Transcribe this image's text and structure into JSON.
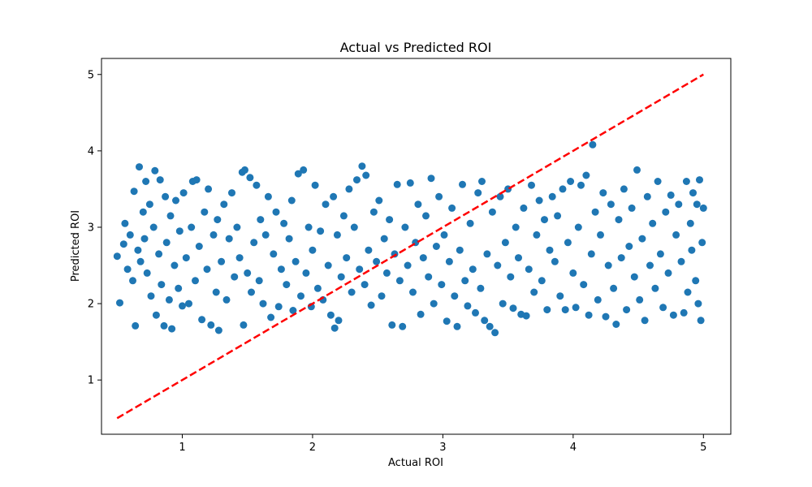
{
  "chart_data": {
    "type": "scatter",
    "title": "Actual vs Predicted ROI",
    "xlabel": "Actual ROI",
    "ylabel": "Predicted ROI",
    "xlim": [
      0.38,
      5.21
    ],
    "ylim": [
      0.29,
      5.21
    ],
    "xticks": [
      "1",
      "2",
      "3",
      "4",
      "5"
    ],
    "yticks": [
      "1",
      "2",
      "3",
      "4",
      "5"
    ],
    "grid": false,
    "legend": "none",
    "point_color": "#1f77b4",
    "reference_line_color": "#ff0000",
    "reference_line": {
      "style": "dashed",
      "x": [
        0.5,
        5.0
      ],
      "y": [
        0.5,
        5.0
      ]
    },
    "series": [
      {
        "values_description": "Predicted ROI per sample",
        "points": [
          [
            0.5,
            2.62
          ],
          [
            0.52,
            2.01
          ],
          [
            0.55,
            2.78
          ],
          [
            0.56,
            3.05
          ],
          [
            0.58,
            2.45
          ],
          [
            0.6,
            2.9
          ],
          [
            0.62,
            2.3
          ],
          [
            0.63,
            3.47
          ],
          [
            0.64,
            1.71
          ],
          [
            0.66,
            2.7
          ],
          [
            0.67,
            3.79
          ],
          [
            0.68,
            2.55
          ],
          [
            0.7,
            3.2
          ],
          [
            0.71,
            2.85
          ],
          [
            0.72,
            3.6
          ],
          [
            0.73,
            2.4
          ],
          [
            0.75,
            3.3
          ],
          [
            0.76,
            2.1
          ],
          [
            0.78,
            3.0
          ],
          [
            0.79,
            3.74
          ],
          [
            0.8,
            1.85
          ],
          [
            0.82,
            2.65
          ],
          [
            0.83,
            3.62
          ],
          [
            0.84,
            2.25
          ],
          [
            0.86,
            1.71
          ],
          [
            0.87,
            3.4
          ],
          [
            0.88,
            2.8
          ],
          [
            0.9,
            2.05
          ],
          [
            0.91,
            3.15
          ],
          [
            0.92,
            1.67
          ],
          [
            0.94,
            2.5
          ],
          [
            0.95,
            3.35
          ],
          [
            0.97,
            2.2
          ],
          [
            0.98,
            2.95
          ],
          [
            1.0,
            1.97
          ],
          [
            1.01,
            3.45
          ],
          [
            1.03,
            2.6
          ],
          [
            1.05,
            2.0
          ],
          [
            1.07,
            3.0
          ],
          [
            1.08,
            3.6
          ],
          [
            1.1,
            2.3
          ],
          [
            1.11,
            3.62
          ],
          [
            1.13,
            2.75
          ],
          [
            1.15,
            1.79
          ],
          [
            1.17,
            3.2
          ],
          [
            1.19,
            2.45
          ],
          [
            1.2,
            3.5
          ],
          [
            1.22,
            1.72
          ],
          [
            1.24,
            2.9
          ],
          [
            1.26,
            2.15
          ],
          [
            1.27,
            3.1
          ],
          [
            1.28,
            1.65
          ],
          [
            1.3,
            2.55
          ],
          [
            1.32,
            3.3
          ],
          [
            1.34,
            2.05
          ],
          [
            1.36,
            2.85
          ],
          [
            1.38,
            3.45
          ],
          [
            1.4,
            2.35
          ],
          [
            1.42,
            3.0
          ],
          [
            1.44,
            2.6
          ],
          [
            1.46,
            3.72
          ],
          [
            1.47,
            1.72
          ],
          [
            1.48,
            3.75
          ],
          [
            1.5,
            2.4
          ],
          [
            1.52,
            3.65
          ],
          [
            1.53,
            2.15
          ],
          [
            1.55,
            2.8
          ],
          [
            1.57,
            3.55
          ],
          [
            1.59,
            2.3
          ],
          [
            1.6,
            3.1
          ],
          [
            1.62,
            2.0
          ],
          [
            1.64,
            2.9
          ],
          [
            1.66,
            3.4
          ],
          [
            1.68,
            1.82
          ],
          [
            1.7,
            2.65
          ],
          [
            1.72,
            3.2
          ],
          [
            1.74,
            1.96
          ],
          [
            1.76,
            2.45
          ],
          [
            1.78,
            3.05
          ],
          [
            1.8,
            2.25
          ],
          [
            1.82,
            2.85
          ],
          [
            1.84,
            3.35
          ],
          [
            1.85,
            1.91
          ],
          [
            1.87,
            2.55
          ],
          [
            1.89,
            3.7
          ],
          [
            1.91,
            2.1
          ],
          [
            1.93,
            3.75
          ],
          [
            1.95,
            2.4
          ],
          [
            1.97,
            3.0
          ],
          [
            1.99,
            1.96
          ],
          [
            2.0,
            2.7
          ],
          [
            2.02,
            3.55
          ],
          [
            2.04,
            2.2
          ],
          [
            2.06,
            2.95
          ],
          [
            2.08,
            2.05
          ],
          [
            2.1,
            3.3
          ],
          [
            2.12,
            2.5
          ],
          [
            2.14,
            1.85
          ],
          [
            2.16,
            3.4
          ],
          [
            2.17,
            1.68
          ],
          [
            2.19,
            2.9
          ],
          [
            2.2,
            1.78
          ],
          [
            2.22,
            2.35
          ],
          [
            2.24,
            3.15
          ],
          [
            2.26,
            2.6
          ],
          [
            2.28,
            3.5
          ],
          [
            2.3,
            2.15
          ],
          [
            2.32,
            3.0
          ],
          [
            2.34,
            3.62
          ],
          [
            2.36,
            2.45
          ],
          [
            2.38,
            3.8
          ],
          [
            2.4,
            2.25
          ],
          [
            2.41,
            3.68
          ],
          [
            2.43,
            2.7
          ],
          [
            2.45,
            1.98
          ],
          [
            2.47,
            3.2
          ],
          [
            2.49,
            2.55
          ],
          [
            2.51,
            3.35
          ],
          [
            2.53,
            2.1
          ],
          [
            2.55,
            2.85
          ],
          [
            2.57,
            2.4
          ],
          [
            2.59,
            3.1
          ],
          [
            2.61,
            1.72
          ],
          [
            2.63,
            2.65
          ],
          [
            2.65,
            3.56
          ],
          [
            2.67,
            2.3
          ],
          [
            2.69,
            1.7
          ],
          [
            2.71,
            3.0
          ],
          [
            2.73,
            2.5
          ],
          [
            2.75,
            3.58
          ],
          [
            2.77,
            2.15
          ],
          [
            2.79,
            2.8
          ],
          [
            2.81,
            3.3
          ],
          [
            2.83,
            1.86
          ],
          [
            2.85,
            2.6
          ],
          [
            2.87,
            3.15
          ],
          [
            2.89,
            2.35
          ],
          [
            2.91,
            3.64
          ],
          [
            2.93,
            2.0
          ],
          [
            2.95,
            2.75
          ],
          [
            2.97,
            3.4
          ],
          [
            2.99,
            2.25
          ],
          [
            3.01,
            2.9
          ],
          [
            3.03,
            1.77
          ],
          [
            3.05,
            2.55
          ],
          [
            3.07,
            3.25
          ],
          [
            3.09,
            2.1
          ],
          [
            3.11,
            1.7
          ],
          [
            3.13,
            2.7
          ],
          [
            3.15,
            3.56
          ],
          [
            3.17,
            2.3
          ],
          [
            3.19,
            1.97
          ],
          [
            3.21,
            3.05
          ],
          [
            3.23,
            2.45
          ],
          [
            3.25,
            1.88
          ],
          [
            3.27,
            3.45
          ],
          [
            3.29,
            2.2
          ],
          [
            3.3,
            3.6
          ],
          [
            3.32,
            1.78
          ],
          [
            3.34,
            2.65
          ],
          [
            3.36,
            1.7
          ],
          [
            3.38,
            3.2
          ],
          [
            3.4,
            1.62
          ],
          [
            3.42,
            2.5
          ],
          [
            3.44,
            3.4
          ],
          [
            3.46,
            2.0
          ],
          [
            3.48,
            2.8
          ],
          [
            3.5,
            3.5
          ],
          [
            3.52,
            2.35
          ],
          [
            3.54,
            1.94
          ],
          [
            3.56,
            3.0
          ],
          [
            3.58,
            2.6
          ],
          [
            3.6,
            1.86
          ],
          [
            3.62,
            3.25
          ],
          [
            3.64,
            1.84
          ],
          [
            3.66,
            2.45
          ],
          [
            3.68,
            3.55
          ],
          [
            3.7,
            2.15
          ],
          [
            3.72,
            2.9
          ],
          [
            3.74,
            3.35
          ],
          [
            3.76,
            2.3
          ],
          [
            3.78,
            3.1
          ],
          [
            3.8,
            1.92
          ],
          [
            3.82,
            2.7
          ],
          [
            3.84,
            3.4
          ],
          [
            3.86,
            2.55
          ],
          [
            3.88,
            3.15
          ],
          [
            3.9,
            2.1
          ],
          [
            3.92,
            3.5
          ],
          [
            3.94,
            1.92
          ],
          [
            3.96,
            2.8
          ],
          [
            3.98,
            3.6
          ],
          [
            4.0,
            2.4
          ],
          [
            4.02,
            1.95
          ],
          [
            4.04,
            3.0
          ],
          [
            4.06,
            3.55
          ],
          [
            4.08,
            2.25
          ],
          [
            4.1,
            3.68
          ],
          [
            4.12,
            1.85
          ],
          [
            4.14,
            2.65
          ],
          [
            4.15,
            4.08
          ],
          [
            4.17,
            3.2
          ],
          [
            4.19,
            2.05
          ],
          [
            4.21,
            2.9
          ],
          [
            4.23,
            3.45
          ],
          [
            4.25,
            1.83
          ],
          [
            4.27,
            2.5
          ],
          [
            4.29,
            3.3
          ],
          [
            4.31,
            2.2
          ],
          [
            4.33,
            1.73
          ],
          [
            4.35,
            3.1
          ],
          [
            4.37,
            2.6
          ],
          [
            4.39,
            3.5
          ],
          [
            4.41,
            1.92
          ],
          [
            4.43,
            2.75
          ],
          [
            4.45,
            3.25
          ],
          [
            4.47,
            2.35
          ],
          [
            4.49,
            3.75
          ],
          [
            4.51,
            2.05
          ],
          [
            4.53,
            2.85
          ],
          [
            4.55,
            1.78
          ],
          [
            4.57,
            3.4
          ],
          [
            4.59,
            2.5
          ],
          [
            4.61,
            3.05
          ],
          [
            4.63,
            2.2
          ],
          [
            4.65,
            3.6
          ],
          [
            4.67,
            2.65
          ],
          [
            4.69,
            1.95
          ],
          [
            4.71,
            3.2
          ],
          [
            4.73,
            2.4
          ],
          [
            4.75,
            3.42
          ],
          [
            4.77,
            1.85
          ],
          [
            4.79,
            2.9
          ],
          [
            4.81,
            3.3
          ],
          [
            4.83,
            2.55
          ],
          [
            4.85,
            1.88
          ],
          [
            4.87,
            3.6
          ],
          [
            4.88,
            2.15
          ],
          [
            4.9,
            3.05
          ],
          [
            4.91,
            2.7
          ],
          [
            4.92,
            3.45
          ],
          [
            4.94,
            2.3
          ],
          [
            4.95,
            3.3
          ],
          [
            4.96,
            2.0
          ],
          [
            4.97,
            3.62
          ],
          [
            4.98,
            1.78
          ],
          [
            4.99,
            2.8
          ],
          [
            5.0,
            3.25
          ]
        ]
      }
    ]
  }
}
